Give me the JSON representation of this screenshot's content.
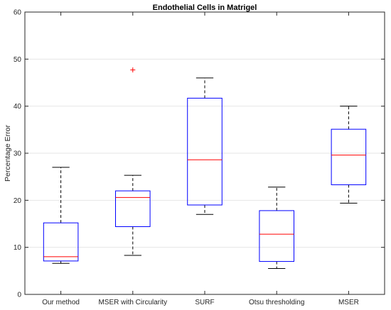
{
  "chart_data": {
    "type": "box",
    "title": "Endothelial Cells in Matrigel",
    "xlabel": "",
    "ylabel": "Percentage Error",
    "ylim": [
      0,
      60
    ],
    "yticks": [
      0,
      10,
      20,
      30,
      40,
      50,
      60
    ],
    "grid": "horizontal",
    "categories": [
      "Our method",
      "MSER with Circularity",
      "SURF",
      "Otsu thresholding",
      "MSER"
    ],
    "boxes": [
      {
        "min": 6.6,
        "q1": 7.1,
        "median": 8.0,
        "q3": 15.2,
        "max": 27.0,
        "outliers": []
      },
      {
        "min": 8.3,
        "q1": 14.4,
        "median": 20.6,
        "q3": 22.0,
        "max": 25.3,
        "outliers": [
          47.7
        ]
      },
      {
        "min": 17.0,
        "q1": 19.0,
        "median": 28.6,
        "q3": 41.7,
        "max": 46.0,
        "outliers": []
      },
      {
        "min": 5.5,
        "q1": 7.0,
        "median": 12.8,
        "q3": 17.8,
        "max": 22.8,
        "outliers": []
      },
      {
        "min": 19.4,
        "q1": 23.3,
        "median": 29.6,
        "q3": 35.1,
        "max": 40.0,
        "outliers": []
      }
    ],
    "colors": {
      "box": "#0000ff",
      "median": "#ff0000",
      "outlier": "#ff0000",
      "whisker": "#000000"
    }
  }
}
